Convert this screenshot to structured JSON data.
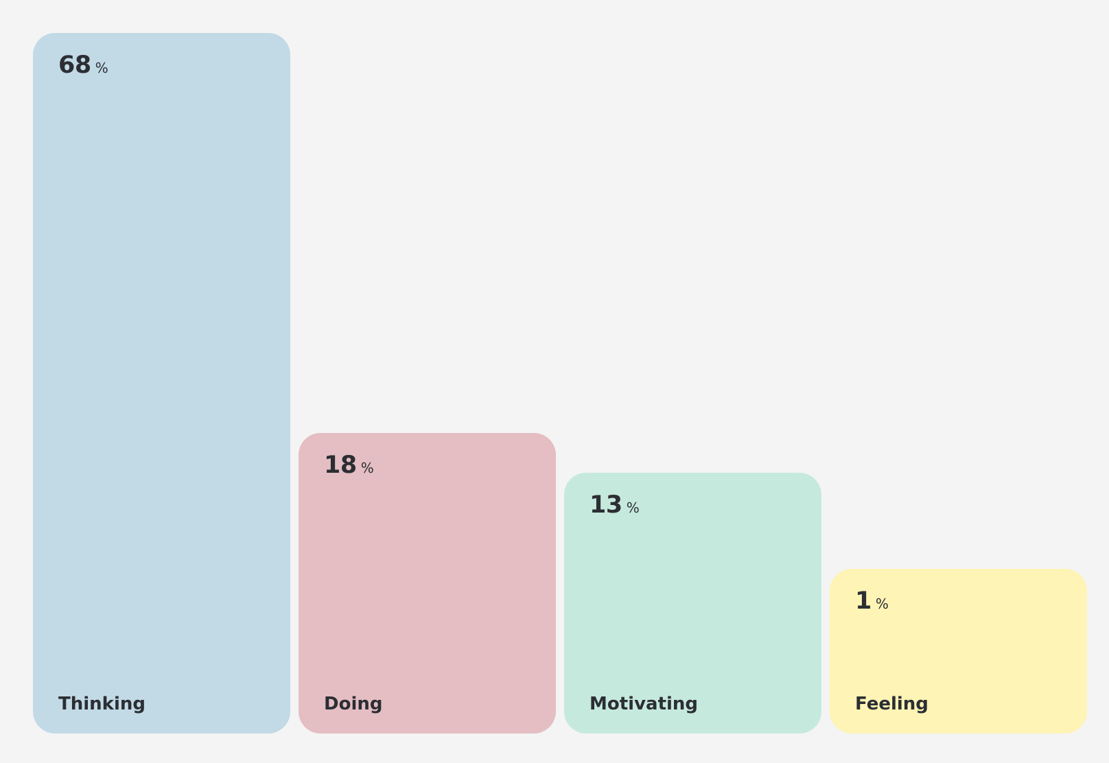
{
  "chart_data": {
    "type": "bar",
    "categories": [
      "Thinking",
      "Doing",
      "Motivating",
      "Feeling"
    ],
    "values": [
      68,
      18,
      13,
      1
    ],
    "unit": "%",
    "colors": [
      "#c2dae6",
      "#e4bec3",
      "#c6e9dd",
      "#fdf4b5"
    ],
    "ylim": [
      0,
      68
    ],
    "grid": false
  }
}
